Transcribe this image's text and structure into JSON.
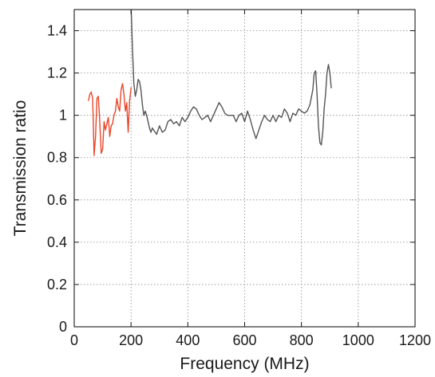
{
  "chart_data": {
    "type": "line",
    "title": "",
    "xlabel": "Frequency (MHz)",
    "ylabel": "Transmission ratio",
    "xlim": [
      0,
      1200
    ],
    "ylim": [
      0,
      1.5
    ],
    "x_ticks": [
      0,
      200,
      400,
      600,
      800,
      1000,
      1200
    ],
    "y_ticks": [
      0,
      0.2,
      0.4,
      0.6,
      0.8,
      1,
      1.2,
      1.4
    ],
    "x_tick_labels": [
      "0",
      "200",
      "400",
      "600",
      "800",
      "1000",
      "1200"
    ],
    "y_tick_labels": [
      "0",
      "0.2",
      "0.4",
      "0.6",
      "0.8",
      "1",
      "1.2",
      "1.4"
    ],
    "grid": true,
    "legend": "none",
    "series": [
      {
        "color": "#e8472a",
        "x": [
          50,
          55,
          60,
          65,
          70,
          75,
          80,
          85,
          90,
          95,
          100,
          105,
          110,
          115,
          120,
          125,
          130,
          135,
          140,
          145,
          150,
          155,
          160,
          165,
          170,
          175,
          180,
          185,
          190,
          195,
          200
        ],
        "y": [
          1.07,
          1.1,
          1.11,
          1.08,
          0.81,
          0.9,
          1.08,
          1.09,
          0.97,
          0.82,
          0.84,
          0.97,
          0.93,
          0.96,
          0.99,
          0.9,
          0.95,
          0.96,
          1.0,
          1.02,
          1.08,
          1.04,
          1.02,
          1.12,
          1.15,
          1.1,
          1.02,
          1.06,
          0.92,
          1.07,
          1.13
        ]
      },
      {
        "color": "#555555",
        "x": [
          200,
          205,
          210,
          215,
          220,
          225,
          230,
          235,
          240,
          245,
          250,
          255,
          260,
          265,
          270,
          275,
          280,
          290,
          300,
          310,
          320,
          330,
          340,
          350,
          360,
          370,
          380,
          390,
          400,
          410,
          420,
          430,
          440,
          450,
          460,
          470,
          480,
          490,
          500,
          510,
          520,
          530,
          540,
          550,
          560,
          570,
          580,
          590,
          600,
          610,
          620,
          630,
          640,
          650,
          660,
          670,
          680,
          690,
          700,
          710,
          720,
          730,
          740,
          750,
          760,
          770,
          780,
          790,
          800,
          810,
          820,
          830,
          840,
          845,
          850,
          855,
          860,
          865,
          870,
          875,
          880,
          885,
          890,
          895,
          900,
          905
        ],
        "y": [
          1.52,
          1.32,
          1.15,
          1.09,
          1.12,
          1.17,
          1.16,
          1.12,
          1.05,
          1.0,
          1.02,
          1.0,
          0.97,
          0.94,
          0.92,
          0.94,
          0.93,
          0.91,
          0.95,
          0.92,
          0.93,
          0.97,
          0.98,
          0.96,
          0.97,
          0.95,
          0.99,
          0.97,
          0.99,
          1.02,
          1.04,
          1.03,
          1.0,
          0.98,
          0.99,
          1.0,
          0.97,
          1.0,
          1.03,
          1.06,
          1.04,
          1.01,
          1.0,
          1.0,
          1.0,
          0.97,
          1.0,
          1.01,
          0.97,
          1.02,
          0.98,
          0.93,
          0.89,
          0.93,
          0.97,
          1.0,
          0.98,
          0.97,
          1.0,
          0.97,
          1.0,
          0.99,
          1.03,
          1.01,
          0.97,
          1.01,
          1.0,
          1.03,
          1.02,
          1.01,
          1.02,
          1.05,
          1.12,
          1.2,
          1.21,
          1.1,
          0.95,
          0.87,
          0.86,
          0.92,
          1.03,
          1.1,
          1.2,
          1.24,
          1.2,
          1.13
        ]
      }
    ]
  }
}
